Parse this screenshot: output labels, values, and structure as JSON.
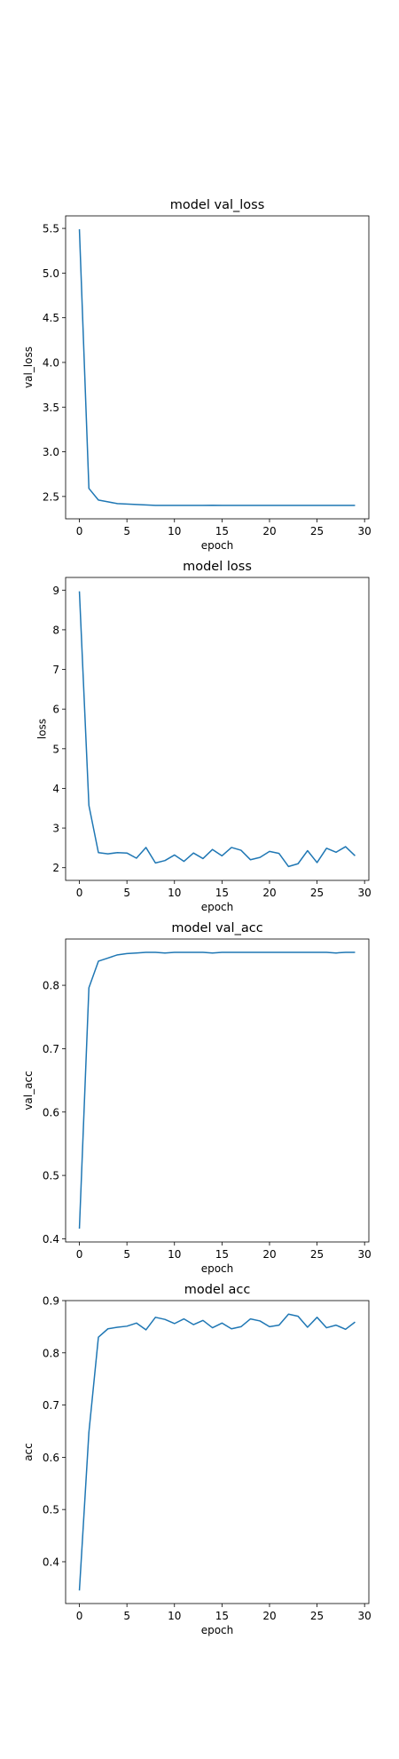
{
  "chart_data": [
    {
      "type": "line",
      "title": "model val_loss",
      "xlabel": "epoch",
      "ylabel": "val_loss",
      "xlim": [
        -1.45,
        30.45
      ],
      "ylim": [
        2.25,
        5.64
      ],
      "xticks": [
        0,
        5,
        10,
        15,
        20,
        25,
        30
      ],
      "xtick_labels": [
        "0",
        "5",
        "10",
        "15",
        "20",
        "25",
        "30"
      ],
      "yticks": [
        2.5,
        3.0,
        3.5,
        4.0,
        4.5,
        5.0,
        5.5
      ],
      "ytick_labels": [
        "2.5",
        "3.0",
        "3.5",
        "4.0",
        "4.5",
        "5.0",
        "5.5"
      ],
      "grid": false,
      "color": "#1f77b4",
      "x": [
        0,
        1,
        2,
        3,
        4,
        5,
        6,
        7,
        8,
        9,
        10,
        11,
        12,
        13,
        14,
        15,
        16,
        17,
        18,
        19,
        20,
        21,
        22,
        23,
        24,
        25,
        26,
        27,
        28,
        29
      ],
      "values": [
        5.49,
        2.59,
        2.46,
        2.44,
        2.42,
        2.415,
        2.41,
        2.405,
        2.4,
        2.4,
        2.4,
        2.4,
        2.4,
        2.4,
        2.402,
        2.4,
        2.4,
        2.4,
        2.4,
        2.4,
        2.4,
        2.4,
        2.4,
        2.4,
        2.4,
        2.4,
        2.4,
        2.4,
        2.4,
        2.4
      ]
    },
    {
      "type": "line",
      "title": "model loss",
      "xlabel": "epoch",
      "ylabel": "loss",
      "xlim": [
        -1.45,
        30.45
      ],
      "ylim": [
        1.68,
        9.32
      ],
      "xticks": [
        0,
        5,
        10,
        15,
        20,
        25,
        30
      ],
      "xtick_labels": [
        "0",
        "5",
        "10",
        "15",
        "20",
        "25",
        "30"
      ],
      "yticks": [
        2,
        3,
        4,
        5,
        6,
        7,
        8,
        9
      ],
      "ytick_labels": [
        "2",
        "3",
        "4",
        "5",
        "6",
        "7",
        "8",
        "9"
      ],
      "grid": false,
      "color": "#1f77b4",
      "x": [
        0,
        1,
        2,
        3,
        4,
        5,
        6,
        7,
        8,
        9,
        10,
        11,
        12,
        13,
        14,
        15,
        16,
        17,
        18,
        19,
        20,
        21,
        22,
        23,
        24,
        25,
        26,
        27,
        28,
        29
      ],
      "values": [
        8.97,
        3.57,
        2.38,
        2.35,
        2.38,
        2.37,
        2.24,
        2.51,
        2.12,
        2.18,
        2.32,
        2.16,
        2.37,
        2.23,
        2.46,
        2.3,
        2.51,
        2.44,
        2.2,
        2.26,
        2.41,
        2.36,
        2.03,
        2.1,
        2.43,
        2.13,
        2.49,
        2.39,
        2.53,
        2.3
      ]
    },
    {
      "type": "line",
      "title": "model val_acc",
      "xlabel": "epoch",
      "ylabel": "val_acc",
      "xlim": [
        -1.45,
        30.45
      ],
      "ylim": [
        0.395,
        0.873
      ],
      "xticks": [
        0,
        5,
        10,
        15,
        20,
        25,
        30
      ],
      "xtick_labels": [
        "0",
        "5",
        "10",
        "15",
        "20",
        "25",
        "30"
      ],
      "yticks": [
        0.4,
        0.5,
        0.6,
        0.7,
        0.8
      ],
      "ytick_labels": [
        "0.4",
        "0.5",
        "0.6",
        "0.7",
        "0.8"
      ],
      "grid": false,
      "color": "#1f77b4",
      "x": [
        0,
        1,
        2,
        3,
        4,
        5,
        6,
        7,
        8,
        9,
        10,
        11,
        12,
        13,
        14,
        15,
        16,
        17,
        18,
        19,
        20,
        21,
        22,
        23,
        24,
        25,
        26,
        27,
        28,
        29
      ],
      "values": [
        0.416,
        0.796,
        0.838,
        0.843,
        0.848,
        0.85,
        0.851,
        0.852,
        0.852,
        0.851,
        0.852,
        0.852,
        0.852,
        0.852,
        0.851,
        0.852,
        0.852,
        0.852,
        0.852,
        0.852,
        0.852,
        0.852,
        0.852,
        0.852,
        0.852,
        0.852,
        0.852,
        0.851,
        0.852,
        0.852
      ]
    },
    {
      "type": "line",
      "title": "model acc",
      "xlabel": "epoch",
      "ylabel": "acc",
      "xlim": [
        -1.45,
        30.45
      ],
      "ylim": [
        0.32,
        0.9
      ],
      "xticks": [
        0,
        5,
        10,
        15,
        20,
        25,
        30
      ],
      "xtick_labels": [
        "0",
        "5",
        "10",
        "15",
        "20",
        "25",
        "30"
      ],
      "yticks": [
        0.4,
        0.5,
        0.6,
        0.7,
        0.8,
        0.9
      ],
      "ytick_labels": [
        "0.4",
        "0.5",
        "0.6",
        "0.7",
        "0.8",
        "0.9"
      ],
      "grid": false,
      "color": "#1f77b4",
      "x": [
        0,
        1,
        2,
        3,
        4,
        5,
        6,
        7,
        8,
        9,
        10,
        11,
        12,
        13,
        14,
        15,
        16,
        17,
        18,
        19,
        20,
        21,
        22,
        23,
        24,
        25,
        26,
        27,
        28,
        29
      ],
      "values": [
        0.345,
        0.648,
        0.83,
        0.846,
        0.849,
        0.851,
        0.857,
        0.844,
        0.868,
        0.864,
        0.856,
        0.865,
        0.854,
        0.862,
        0.848,
        0.857,
        0.846,
        0.85,
        0.865,
        0.861,
        0.85,
        0.853,
        0.874,
        0.87,
        0.849,
        0.868,
        0.848,
        0.853,
        0.845,
        0.859
      ]
    }
  ]
}
